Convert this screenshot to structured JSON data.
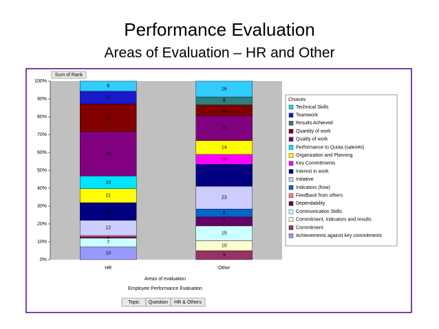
{
  "chart_data": {
    "type": "stacked-bar-100",
    "title": "Performance Evaluation",
    "subtitle": "Areas of Evaluation – HR and Other",
    "value_field": "Sum of Rank",
    "legend_title": "Choices",
    "x_label": "Areas of evaluation",
    "page_field": "Employee Performance Evaluation",
    "field_buttons": [
      "Topic",
      "Question",
      "HR & Others"
    ],
    "categories": [
      "HR",
      "Other"
    ],
    "ylim": [
      0,
      100
    ],
    "yticks": [
      {
        "value": 0,
        "label": "0%"
      },
      {
        "value": 10,
        "label": "10%"
      },
      {
        "value": 20,
        "label": "20%"
      },
      {
        "value": 30,
        "label": "30%"
      },
      {
        "value": 40,
        "label": "40%"
      },
      {
        "value": 50,
        "label": "50%"
      },
      {
        "value": 60,
        "label": "60%"
      },
      {
        "value": 70,
        "label": "70%"
      },
      {
        "value": 80,
        "label": "80%"
      },
      {
        "value": 90,
        "label": "90%"
      },
      {
        "value": 100,
        "label": "100%"
      }
    ],
    "series": [
      {
        "name": "Technical Skills",
        "color": "#33ccff",
        "values": [
          8,
          16
        ]
      },
      {
        "name": "Teamwork",
        "color": "#1a1acc",
        "values": [
          10,
          null
        ]
      },
      {
        "name": "Results Achieved",
        "color": "#2e7f7f",
        "values": [
          null,
          8
        ]
      },
      {
        "name": "Quantity of work",
        "color": "#800000",
        "values": [
          22,
          11
        ]
      },
      {
        "name": "Quality of work",
        "color": "#800080",
        "values": [
          35,
          25
        ]
      },
      {
        "name": "Performance to Quota (sales#s)",
        "color": "#00e5ff",
        "values": [
          10,
          null
        ]
      },
      {
        "name": "Organization and Planning",
        "color": "#ffff00",
        "values": [
          11,
          14
        ]
      },
      {
        "name": "Key Commitments",
        "color": "#ff00ff",
        "values": [
          null,
          10
        ]
      },
      {
        "name": "Interest in work",
        "color": "#000080",
        "values": [
          14,
          22
        ]
      },
      {
        "name": "Initiative",
        "color": "#ccccff",
        "values": [
          12,
          23
        ]
      },
      {
        "name": "Indicators (how)",
        "color": "#0066cc",
        "values": [
          null,
          8
        ]
      },
      {
        "name": "Feedback from others",
        "color": "#ff8080",
        "values": [
          1,
          null
        ]
      },
      {
        "name": "Dependability",
        "color": "#660066",
        "values": [
          1,
          9
        ]
      },
      {
        "name": "Communication Skills",
        "color": "#ccffff",
        "values": [
          7,
          15
        ]
      },
      {
        "name": "Commitment, indicators and results",
        "color": "#ffffcc",
        "values": [
          null,
          10
        ]
      },
      {
        "name": "Commitment",
        "color": "#993366",
        "values": [
          null,
          9
        ]
      },
      {
        "name": "Achievements against key commitments",
        "color": "#9999ff",
        "values": [
          10,
          null
        ]
      }
    ]
  }
}
